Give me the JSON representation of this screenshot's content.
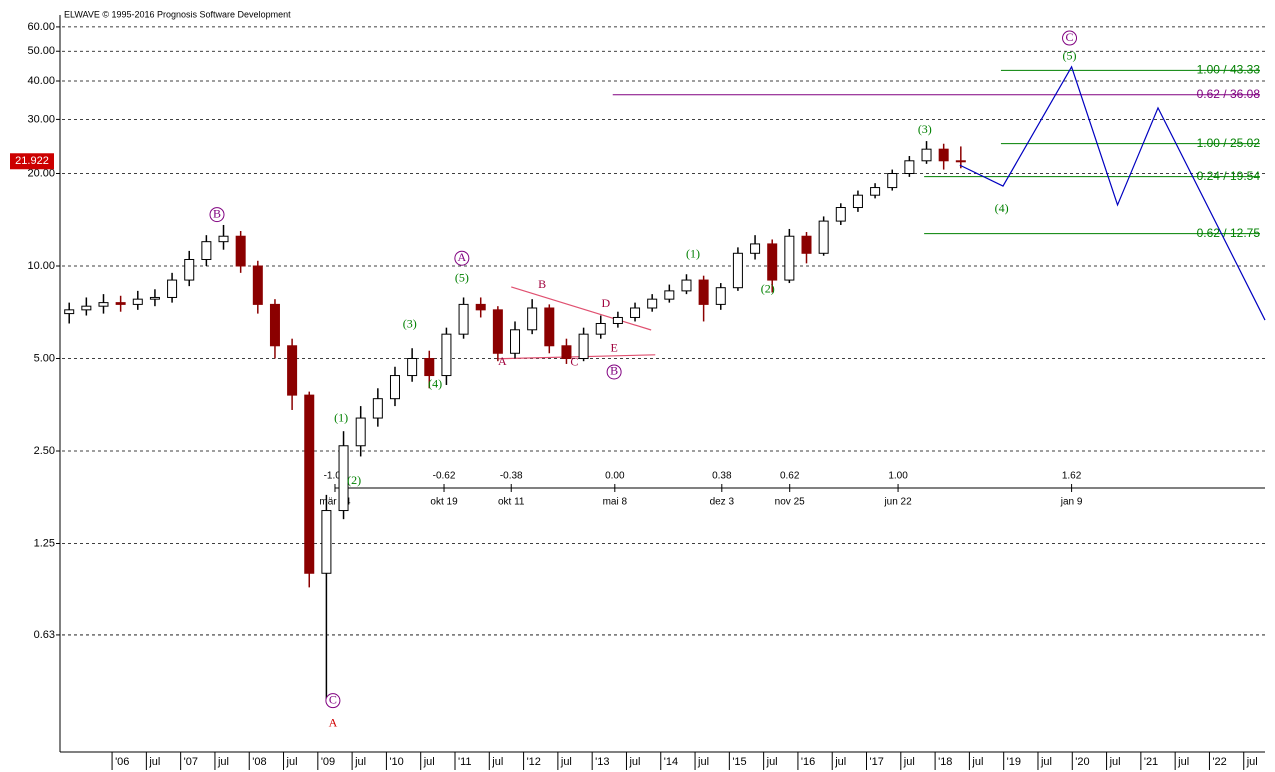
{
  "chart_data": {
    "type": "candlestick",
    "title": "ELWAVE © 1995-2016 Prognosis Software Development",
    "ylog": true,
    "grid": true,
    "xlim": [
      2005.27,
      2022.81
    ],
    "ylim": [
      0.262,
      65.6
    ],
    "yticks": [
      0.63,
      1.25,
      {
        "value": 2.5,
        "label": "2.50"
      },
      {
        "value": 5,
        "label": "5.00"
      },
      {
        "value": 10,
        "label": "10.00"
      },
      {
        "value": 20,
        "label": "20.00"
      },
      {
        "value": 30,
        "label": "30.00"
      },
      {
        "value": 40,
        "label": "40.00"
      },
      {
        "value": 50,
        "label": "50.00"
      },
      {
        "value": 60,
        "label": "60.00"
      }
    ],
    "xticks": [
      {
        "value": 2006,
        "label": "'06"
      },
      {
        "value": 2006.5,
        "label": "jul"
      },
      {
        "value": 2007,
        "label": "'07"
      },
      {
        "value": 2007.5,
        "label": "jul"
      },
      {
        "value": 2008,
        "label": "'08"
      },
      {
        "value": 2008.5,
        "label": "jul"
      },
      {
        "value": 2009,
        "label": "'09"
      },
      {
        "value": 2009.5,
        "label": "jul"
      },
      {
        "value": 2010,
        "label": "'10"
      },
      {
        "value": 2010.5,
        "label": "jul"
      },
      {
        "value": 2011,
        "label": "'11"
      },
      {
        "value": 2011.5,
        "label": "jul"
      },
      {
        "value": 2012,
        "label": "'12"
      },
      {
        "value": 2012.5,
        "label": "jul"
      },
      {
        "value": 2013,
        "label": "'13"
      },
      {
        "value": 2013.5,
        "label": "jul"
      },
      {
        "value": 2014,
        "label": "'14"
      },
      {
        "value": 2014.5,
        "label": "jul"
      },
      {
        "value": 2015,
        "label": "'15"
      },
      {
        "value": 2015.5,
        "label": "jul"
      },
      {
        "value": 2016,
        "label": "'16"
      },
      {
        "value": 2016.5,
        "label": "jul"
      },
      {
        "value": 2017,
        "label": "'17"
      },
      {
        "value": 2017.5,
        "label": "jul"
      },
      {
        "value": 2018,
        "label": "'18"
      },
      {
        "value": 2018.5,
        "label": "jul"
      },
      {
        "value": 2019,
        "label": "'19"
      },
      {
        "value": 2019.5,
        "label": "jul"
      },
      {
        "value": 2020,
        "label": "'20"
      },
      {
        "value": 2020.5,
        "label": "jul"
      },
      {
        "value": 2021,
        "label": "'21"
      },
      {
        "value": 2021.5,
        "label": "jul"
      },
      {
        "value": 2022,
        "label": "'22"
      },
      {
        "value": 2022.5,
        "label": "jul"
      }
    ],
    "up_color": "#000000",
    "down_color": "#8b0000",
    "candles": {
      "x": [
        2005.375,
        2005.625,
        2005.875,
        2006.125,
        2006.375,
        2006.625,
        2006.875,
        2007.125,
        2007.375,
        2007.625,
        2007.875,
        2008.125,
        2008.375,
        2008.625,
        2008.875,
        2009.125,
        2009.375,
        2009.625,
        2009.875,
        2010.125,
        2010.375,
        2010.625,
        2010.875,
        2011.125,
        2011.375,
        2011.625,
        2011.875,
        2012.125,
        2012.375,
        2012.625,
        2012.875,
        2013.125,
        2013.375,
        2013.625,
        2013.875,
        2014.125,
        2014.375,
        2014.625,
        2014.875,
        2015.125,
        2015.375,
        2015.625,
        2015.875,
        2016.125,
        2016.375,
        2016.625,
        2016.875,
        2017.125,
        2017.375,
        2017.625,
        2017.875,
        2018.125,
        2018.375
      ],
      "open": [
        7.0,
        7.2,
        7.4,
        7.6,
        7.5,
        7.8,
        7.9,
        9.0,
        10.5,
        12.0,
        12.5,
        10.0,
        7.5,
        5.5,
        3.8,
        1.0,
        1.6,
        2.6,
        3.2,
        3.7,
        4.4,
        5.0,
        4.4,
        6.0,
        7.5,
        7.2,
        5.2,
        6.2,
        7.3,
        5.5,
        5.0,
        6.0,
        6.5,
        6.8,
        7.3,
        7.8,
        8.3,
        9.0,
        7.5,
        8.5,
        11.0,
        11.8,
        9.0,
        12.5,
        11.0,
        14.0,
        15.5,
        17.0,
        18.0,
        20.0,
        22.0,
        24.0,
        22.0
      ],
      "high": [
        7.6,
        7.9,
        8.1,
        8.0,
        8.3,
        8.4,
        9.5,
        11.2,
        12.6,
        13.6,
        13.0,
        10.4,
        7.8,
        5.8,
        3.9,
        1.8,
        2.9,
        3.5,
        4.0,
        4.7,
        5.4,
        5.3,
        6.3,
        7.9,
        7.9,
        7.4,
        6.6,
        7.8,
        7.5,
        5.8,
        6.3,
        6.9,
        7.1,
        7.6,
        8.1,
        8.7,
        9.4,
        9.3,
        8.8,
        11.5,
        12.6,
        12.2,
        13.2,
        12.9,
        14.5,
        16.0,
        17.6,
        18.6,
        20.6,
        22.8,
        25.5,
        25.0,
        24.5
      ],
      "low": [
        6.5,
        6.9,
        7.0,
        7.1,
        7.2,
        7.4,
        7.6,
        8.6,
        10.0,
        11.3,
        9.5,
        7.0,
        5.0,
        3.4,
        0.9,
        0.38,
        1.5,
        2.4,
        3.0,
        3.5,
        4.2,
        4.0,
        4.1,
        5.8,
        6.8,
        4.9,
        5.0,
        6.0,
        5.2,
        4.8,
        4.9,
        5.8,
        6.3,
        6.6,
        7.1,
        7.6,
        8.1,
        6.6,
        7.2,
        8.3,
        10.5,
        8.2,
        8.8,
        10.2,
        10.8,
        13.6,
        15.0,
        16.6,
        17.6,
        19.5,
        21.5,
        20.6,
        20.8
      ],
      "close": [
        7.2,
        7.4,
        7.6,
        7.5,
        7.8,
        7.9,
        9.0,
        10.5,
        12.0,
        12.5,
        10.0,
        7.5,
        5.5,
        3.8,
        1.0,
        1.6,
        2.6,
        3.2,
        3.7,
        4.4,
        5.0,
        4.4,
        6.0,
        7.5,
        7.2,
        5.2,
        6.2,
        7.3,
        5.5,
        5.0,
        6.0,
        6.5,
        6.8,
        7.3,
        7.8,
        8.3,
        9.0,
        7.5,
        8.5,
        11.0,
        11.8,
        9.0,
        12.5,
        11.0,
        14.0,
        15.5,
        17.0,
        18.0,
        20.0,
        22.0,
        24.0,
        22.0,
        21.92
      ]
    },
    "last_price": 21.922,
    "last_price_color": "#cc0000",
    "projection": {
      "color": "#0000c0",
      "x": [
        2018.36,
        2018.99,
        2019.99,
        2020.66,
        2021.25,
        2022.81
      ],
      "values": [
        21.3,
        18.2,
        44.5,
        15.8,
        32.7,
        6.67
      ]
    },
    "triangle_lines": {
      "color": "#e05070",
      "lines": [
        {
          "x": [
            2011.82,
            2013.86
          ],
          "values": [
            8.55,
            6.19
          ]
        },
        {
          "x": [
            2011.61,
            2013.92
          ],
          "values": [
            4.99,
            5.14
          ]
        }
      ]
    },
    "levels": [
      {
        "value": 43.33,
        "label": "1.00 / 43.33",
        "color": "#008000",
        "x_start": 2018.96
      },
      {
        "value": 36.08,
        "label": "0.62 / 36.08",
        "color": "#800080",
        "x_start": 2013.3
      },
      {
        "value": 25.02,
        "label": "1.00 / 25.02",
        "color": "#008000",
        "x_start": 2018.96
      },
      {
        "value": 19.54,
        "label": "0.24 / 19.54",
        "color": "#008000",
        "x_start": 2017.84
      },
      {
        "value": 12.75,
        "label": "0.62 / 12.75",
        "color": "#008000",
        "x_start": 2017.84
      }
    ],
    "time_ratios": [
      {
        "x": 2009.25,
        "ratio": {
          "value": -1,
          "label": "-1.00"
        },
        "date": "mär 24"
      },
      {
        "x": 2010.84,
        "ratio": -0.62,
        "date": "okt 19"
      },
      {
        "x": 2011.82,
        "ratio": -0.38,
        "date": "okt 11"
      },
      {
        "x": 2013.33,
        "ratio": {
          "value": 0,
          "label": "0.00"
        },
        "date": "mai 8"
      },
      {
        "x": 2014.89,
        "ratio": 0.38,
        "date": "dez 3"
      },
      {
        "x": 2015.88,
        "ratio": 0.62,
        "date": "nov 25"
      },
      {
        "x": 2017.46,
        "ratio": {
          "value": 1,
          "label": "1.00"
        },
        "date": "jun 22"
      },
      {
        "x": 2019.99,
        "ratio": 1.62,
        "date": "jan 9"
      }
    ],
    "annotations": [
      {
        "text": "C",
        "x": 2019.96,
        "y": 55.2,
        "color": "#800080",
        "circled": true
      },
      {
        "text": "(5)",
        "x": 2019.96,
        "y": 47.9,
        "color": "#008000",
        "circled": false
      },
      {
        "text": "(3)",
        "x": 2017.85,
        "y": 27.7,
        "color": "#008000",
        "circled": false
      },
      {
        "text": "(4)",
        "x": 2018.97,
        "y": 15.3,
        "color": "#008000",
        "circled": false
      },
      {
        "text": "B",
        "x": 2007.53,
        "y": 14.7,
        "color": "#800080",
        "circled": true
      },
      {
        "text": "A",
        "x": 2011.1,
        "y": 10.6,
        "color": "#800080",
        "circled": true
      },
      {
        "text": "(5)",
        "x": 2011.1,
        "y": 9.08,
        "color": "#008000",
        "circled": false
      },
      {
        "text": "(1)",
        "x": 2014.47,
        "y": 10.9,
        "color": "#008000",
        "circled": false
      },
      {
        "text": "(2)",
        "x": 2015.56,
        "y": 8.36,
        "color": "#008000",
        "circled": false
      },
      {
        "text": "(3)",
        "x": 2010.34,
        "y": 6.43,
        "color": "#008000",
        "circled": false
      },
      {
        "text": "(4)",
        "x": 2010.71,
        "y": 4.1,
        "color": "#008000",
        "circled": false
      },
      {
        "text": "B",
        "x": 2012.27,
        "y": 8.67,
        "color": "#a0003c",
        "circled": false
      },
      {
        "text": "D",
        "x": 2013.2,
        "y": 7.52,
        "color": "#a0003c",
        "circled": false
      },
      {
        "text": "A",
        "x": 2011.69,
        "y": 4.87,
        "color": "#a0003c",
        "circled": false
      },
      {
        "text": "C",
        "x": 2012.74,
        "y": 4.84,
        "color": "#a0003c",
        "circled": false
      },
      {
        "text": "E",
        "x": 2013.32,
        "y": 5.37,
        "color": "#a0003c",
        "circled": false
      },
      {
        "text": "B",
        "x": 2013.32,
        "y": 4.52,
        "color": "#800080",
        "circled": true
      },
      {
        "text": "(1)",
        "x": 2009.34,
        "y": 3.18,
        "color": "#008000",
        "circled": false
      },
      {
        "text": "(2)",
        "x": 2009.53,
        "y": 1.99,
        "color": "#008000",
        "circled": false
      },
      {
        "text": "C",
        "x": 2009.22,
        "y": 0.385,
        "color": "#800080",
        "circled": true
      },
      {
        "text": "A",
        "x": 2009.22,
        "y": 0.324,
        "color": "#d00000",
        "circled": false
      }
    ]
  }
}
